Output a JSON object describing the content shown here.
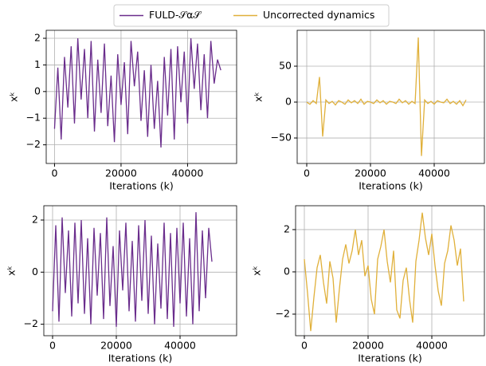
{
  "chart_data": [
    {
      "type": "line",
      "xlabel": "Iterations (k)",
      "ylabel": "xᵏ",
      "grid": true,
      "xlim": [
        -2500,
        54750
      ],
      "ylim": [
        -2.7,
        2.3
      ],
      "xticks": [
        0,
        20000,
        40000
      ],
      "yticks": [
        {
          "value": -2,
          "label": "−2"
        },
        {
          "value": -1,
          "label": "−1"
        },
        0,
        1,
        2
      ],
      "x": [
        0,
        1000,
        2000,
        3000,
        4000,
        5000,
        6000,
        7000,
        8000,
        9000,
        10000,
        11000,
        12000,
        13000,
        14000,
        15000,
        16000,
        17000,
        18000,
        19000,
        20000,
        21000,
        22000,
        23000,
        24000,
        25000,
        26000,
        27000,
        28000,
        29000,
        30000,
        31000,
        32000,
        33000,
        34000,
        35000,
        36000,
        37000,
        38000,
        39000,
        40000,
        41000,
        42000,
        43000,
        44000,
        45000,
        46000,
        47000,
        48000,
        49000,
        50000
      ],
      "series": [
        {
          "name": "FULD-𝒮α𝒮",
          "color": "#6a2d8c",
          "values": [
            -1.4,
            0.9,
            -1.8,
            1.3,
            -0.6,
            1.7,
            -1.2,
            2.0,
            -0.3,
            1.6,
            -1.0,
            1.9,
            -1.5,
            1.2,
            -0.8,
            1.8,
            -1.3,
            0.6,
            -1.9,
            1.4,
            -0.5,
            1.1,
            -1.6,
            1.9,
            0.2,
            1.5,
            -1.1,
            0.8,
            -1.7,
            1.0,
            -1.4,
            0.4,
            -2.1,
            1.3,
            -0.9,
            1.6,
            -1.8,
            1.7,
            -0.4,
            1.5,
            -1.2,
            2.0,
            0.1,
            1.8,
            -0.7,
            1.4,
            -1.0,
            1.9,
            0.3,
            1.2,
            0.8
          ]
        }
      ]
    },
    {
      "type": "line",
      "xlabel": "Iterations (k)",
      "ylabel": "xᵏ",
      "grid": true,
      "xlim": [
        -3000,
        55750
      ],
      "ylim": [
        -85.5,
        100
      ],
      "xticks": [
        0,
        20000,
        40000
      ],
      "yticks": [
        {
          "value": -50,
          "label": "−50"
        },
        0,
        50
      ],
      "x": [
        0,
        1000,
        2000,
        3000,
        4000,
        5000,
        6000,
        7000,
        8000,
        9000,
        10000,
        11000,
        12000,
        13000,
        14000,
        15000,
        16000,
        17000,
        18000,
        19000,
        20000,
        21000,
        22000,
        23000,
        24000,
        25000,
        26000,
        27000,
        28000,
        29000,
        30000,
        31000,
        32000,
        33000,
        34000,
        35000,
        36000,
        37000,
        38000,
        39000,
        40000,
        41000,
        42000,
        43000,
        44000,
        45000,
        46000,
        47000,
        48000,
        49000,
        50000
      ],
      "series": [
        {
          "name": "Uncorrected dynamics",
          "color": "#e0b03a",
          "values": [
            0,
            -3,
            2,
            -2,
            35,
            -48,
            3,
            -2,
            1,
            -4,
            2,
            0,
            -3,
            3,
            -1,
            2,
            -2,
            4,
            -3,
            1,
            0,
            -2,
            3,
            -1,
            2,
            -3,
            1,
            0,
            -2,
            4,
            -1,
            2,
            -3,
            1,
            -2,
            90,
            -75,
            3,
            -2,
            1,
            -3,
            2,
            0,
            -1,
            4,
            -2,
            1,
            -3,
            2,
            -5,
            3
          ]
        }
      ]
    },
    {
      "type": "line",
      "xlabel": "Iterations (k)",
      "ylabel": "xᵏ",
      "grid": true,
      "xlim": [
        -2750,
        57750
      ],
      "ylim": [
        -2.44,
        2.55
      ],
      "xticks": [
        0,
        20000,
        40000
      ],
      "yticks": [
        {
          "value": -2,
          "label": "−2"
        },
        0,
        2
      ],
      "x": [
        0,
        1000,
        2000,
        3000,
        4000,
        5000,
        6000,
        7000,
        8000,
        9000,
        10000,
        11000,
        12000,
        13000,
        14000,
        15000,
        16000,
        17000,
        18000,
        19000,
        20000,
        21000,
        22000,
        23000,
        24000,
        25000,
        26000,
        27000,
        28000,
        29000,
        30000,
        31000,
        32000,
        33000,
        34000,
        35000,
        36000,
        37000,
        38000,
        39000,
        40000,
        41000,
        42000,
        43000,
        44000,
        45000,
        46000,
        47000,
        48000,
        49000,
        50000
      ],
      "series": [
        {
          "color": "#6a2d8c",
          "values": [
            -1.5,
            1.8,
            -1.9,
            2.1,
            -0.8,
            1.6,
            -1.7,
            1.9,
            -1.2,
            2.0,
            -1.6,
            1.3,
            -2.0,
            1.7,
            -0.9,
            1.5,
            -1.8,
            2.1,
            -1.3,
            1.0,
            -2.1,
            1.6,
            -0.7,
            1.9,
            -1.5,
            1.2,
            -1.9,
            1.8,
            -1.1,
            2.0,
            -1.6,
            1.4,
            -2.0,
            1.1,
            -1.4,
            1.9,
            -1.8,
            1.5,
            -2.1,
            1.7,
            -1.2,
            1.9,
            -1.7,
            1.3,
            -2.0,
            2.3,
            -1.5,
            1.6,
            -1.0,
            1.7,
            0.4
          ]
        }
      ]
    },
    {
      "type": "line",
      "xlabel": "Iterations (k)",
      "ylabel": "xᵏ",
      "grid": true,
      "xlim": [
        -2750,
        56500
      ],
      "ylim": [
        -3.02,
        3.13
      ],
      "xticks": [
        0,
        20000,
        40000
      ],
      "yticks": [
        {
          "value": -2,
          "label": "−2"
        },
        0,
        2
      ],
      "x": [
        0,
        1000,
        2000,
        3000,
        4000,
        5000,
        6000,
        7000,
        8000,
        9000,
        10000,
        11000,
        12000,
        13000,
        14000,
        15000,
        16000,
        17000,
        18000,
        19000,
        20000,
        21000,
        22000,
        23000,
        24000,
        25000,
        26000,
        27000,
        28000,
        29000,
        30000,
        31000,
        32000,
        33000,
        34000,
        35000,
        36000,
        37000,
        38000,
        39000,
        40000,
        41000,
        42000,
        43000,
        44000,
        45000,
        46000,
        47000,
        48000,
        49000,
        50000
      ],
      "series": [
        {
          "color": "#e0b03a",
          "values": [
            0.6,
            -1.0,
            -2.8,
            -1.2,
            0.2,
            0.8,
            -0.5,
            -1.5,
            0.5,
            -0.3,
            -2.4,
            -0.8,
            0.6,
            1.3,
            0.4,
            1.0,
            2.0,
            0.8,
            1.5,
            -0.2,
            0.3,
            -1.3,
            -2.0,
            0.6,
            1.2,
            2.0,
            0.5,
            -0.5,
            1.0,
            -1.8,
            -2.2,
            -0.4,
            0.2,
            -1.3,
            -2.4,
            0.5,
            1.5,
            2.8,
            1.6,
            0.8,
            1.8,
            0.3,
            -0.9,
            -1.6,
            0.4,
            1.0,
            2.2,
            1.5,
            0.3,
            1.1,
            -1.4
          ]
        }
      ]
    }
  ]
}
